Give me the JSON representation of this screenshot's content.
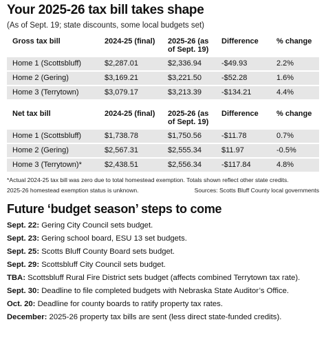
{
  "headline": "Your 2025-26 tax bill takes shape",
  "subhead": "(As of Sept. 19; state discounts, some local budgets set)",
  "gross": {
    "headers": [
      "Gross tax bill",
      "2024-25 (final)",
      "2025-26 (as of Sept. 19)",
      "Difference",
      "% change"
    ],
    "rows": [
      [
        "Home 1 (Scottsbluff)",
        "$2,287.01",
        "$2,336.94",
        "-$49.93",
        "2.2%"
      ],
      [
        "Home 2 (Gering)",
        "$3,169.21",
        "$3,221.50",
        "-$52.28",
        "1.6%"
      ],
      [
        "Home 3 (Terrytown)",
        "$3,079.17",
        "$3,213.39",
        "-$134.21",
        "4.4%"
      ]
    ]
  },
  "net": {
    "headers": [
      "Net tax bill",
      "2024-25 (final)",
      "2025-26 (as of Sept. 19)",
      "Difference",
      "% change"
    ],
    "rows": [
      [
        "Home 1 (Scottsbluff)",
        "$1,738.78",
        "$1,750.56",
        "-$11.78",
        "0.7%"
      ],
      [
        "Home 2 (Gering)",
        "$2,567.31",
        "$2,555.34",
        "$11.97",
        "-0.5%"
      ],
      [
        "Home 3 (Terrytown)*",
        "$2,438.51",
        "$2,556.34",
        "-$117.84",
        "4.8%"
      ]
    ]
  },
  "footnote": "*Actual 2024-25 tax bill was zero due to total homestead exemption. Totals shown reflect other state credits.",
  "footnote2": "2025-26 homestead exemption status is unknown.",
  "sources": "Sources: Scotts Bluff County local governments",
  "steps_title": "Future ‘budget season’ steps to come",
  "steps": [
    {
      "date": "Sept. 22:",
      "text": " Gering City Council sets budget."
    },
    {
      "date": "Sept. 23:",
      "text": " Gering school board, ESU 13 set budgets."
    },
    {
      "date": "Sept. 25:",
      "text": " Scotts Bluff County Board sets budget."
    },
    {
      "date": "Sept. 29:",
      "text": " Scottsbluff City Council sets budget."
    },
    {
      "date": "TBA:",
      "text": " Scottsbluff Rural Fire District sets budget (affects combined Terrytown tax rate)."
    },
    {
      "date": "Sept. 30:",
      "text": " Deadline to file completed budgets with Nebraska State Auditor’s Office."
    },
    {
      "date": "Oct. 20:",
      "text": " Deadline for county boards to ratify property tax rates."
    },
    {
      "date": "December:",
      "text": " 2025-26 property tax bills are sent (less direct state-funded credits)."
    }
  ]
}
